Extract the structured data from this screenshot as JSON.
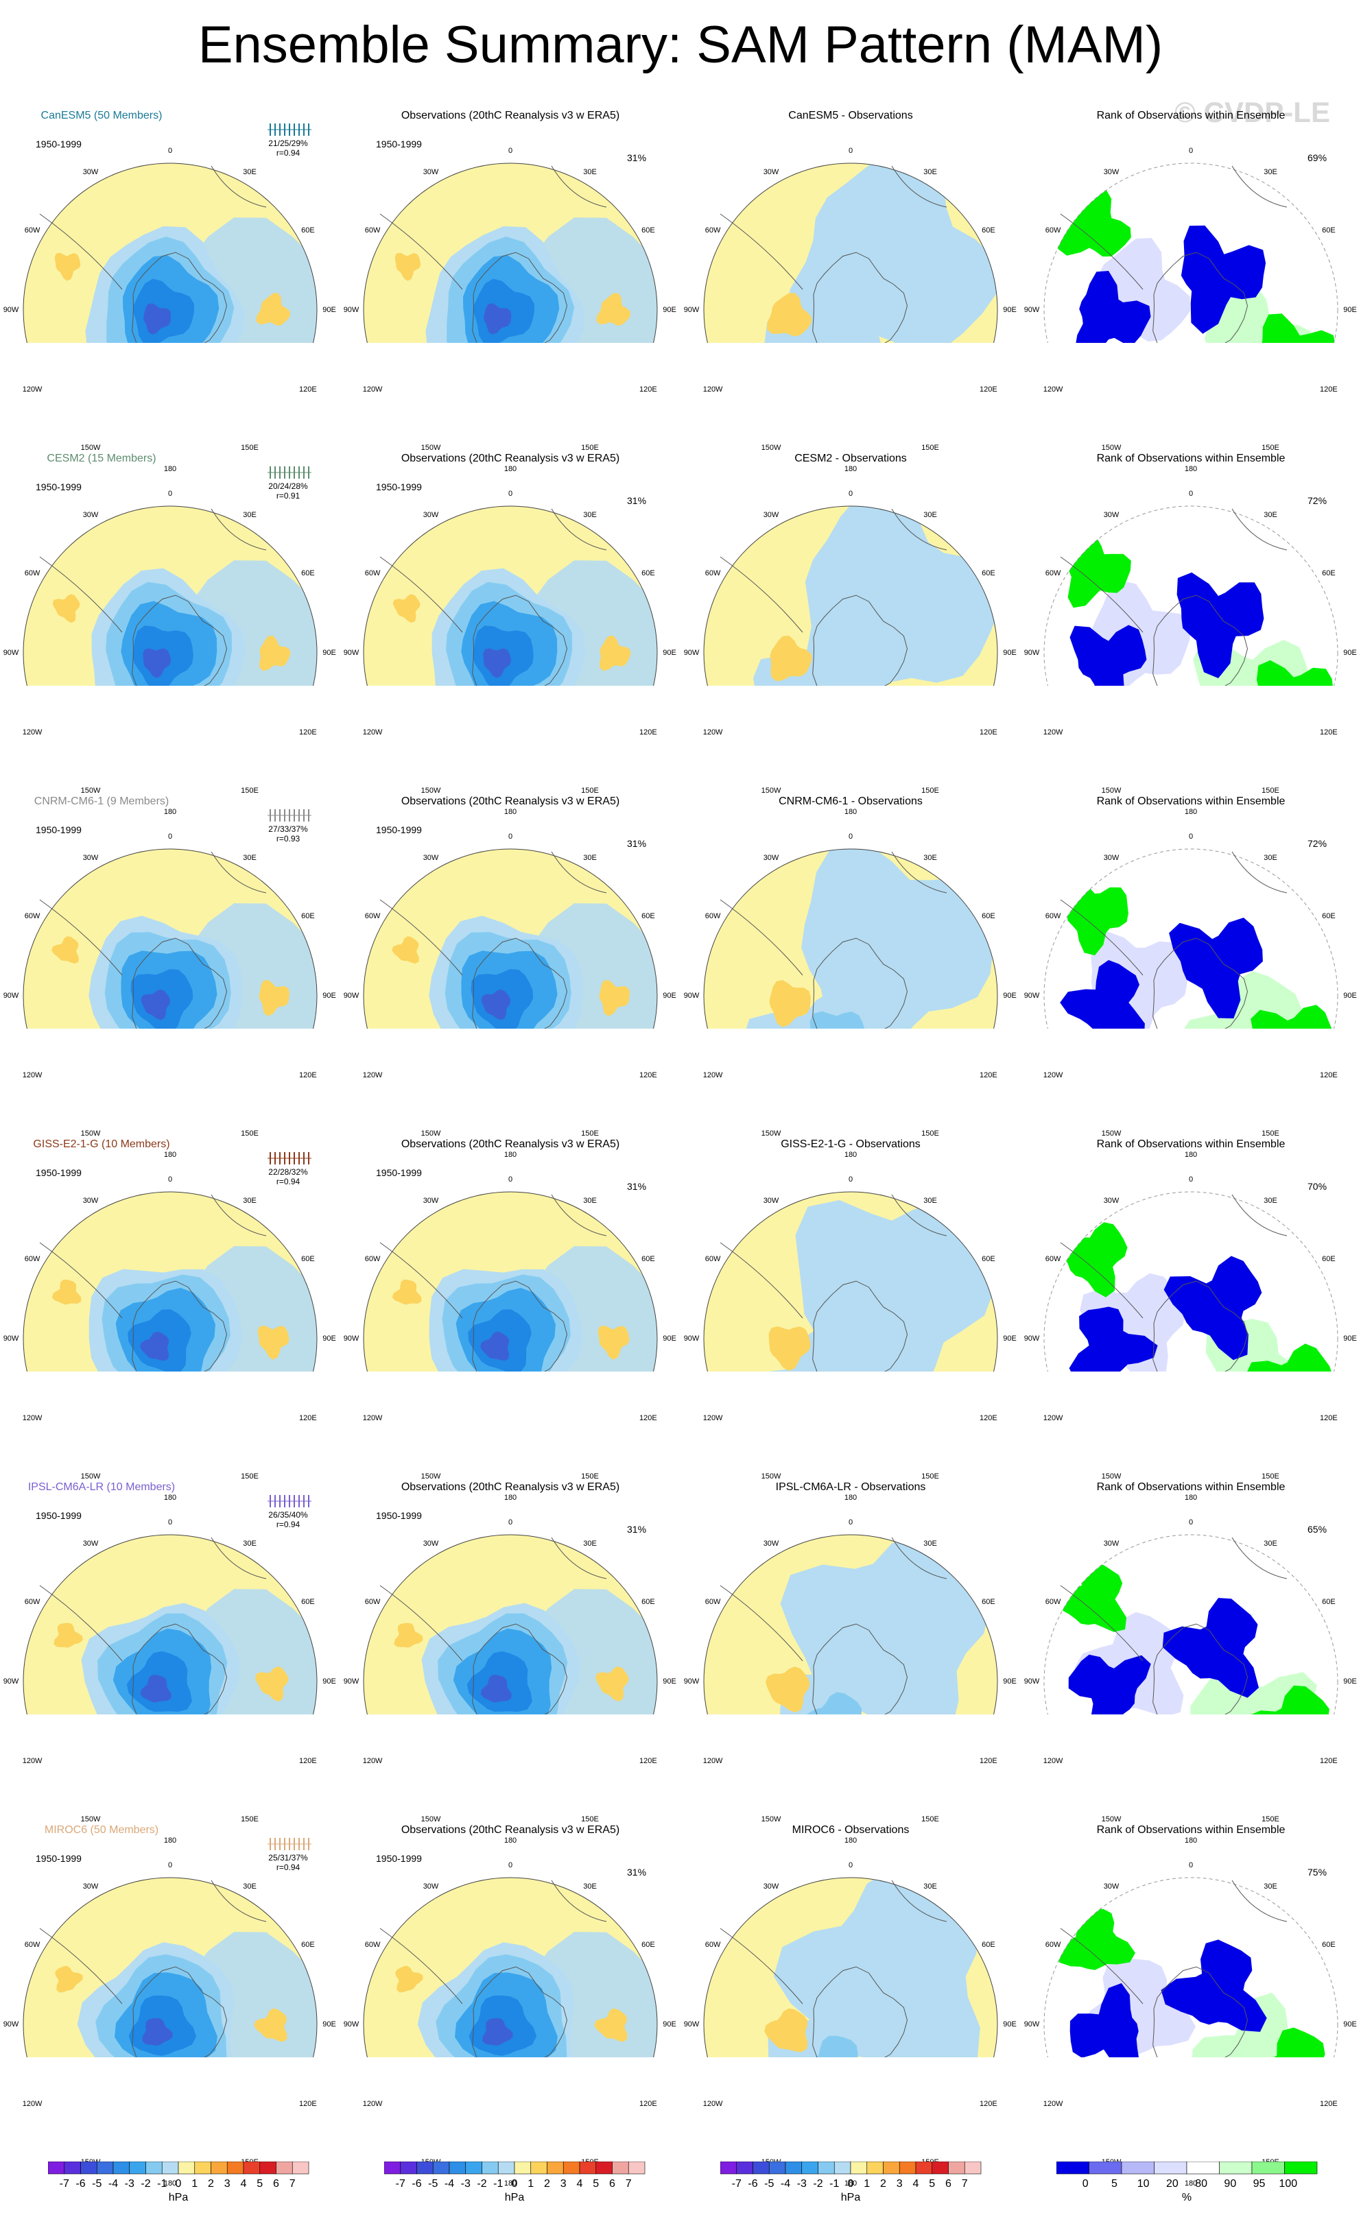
{
  "title": "Ensemble Summary: SAM Pattern (MAM)",
  "watermark": "© CVDP-LE",
  "period": "1950-1999",
  "obs_title": "Observations (20thC Reanalysis v3 w ERA5)",
  "rank_title": "Rank of Observations within Ensemble",
  "longitude_labels": [
    "0",
    "30E",
    "60E",
    "90E",
    "120E",
    "150E",
    "180",
    "150W",
    "120W",
    "90W",
    "60W",
    "30W"
  ],
  "colors": {
    "pos_weak": "#fbf4a5",
    "neg_weak": "#b5dcf2",
    "pos1": "#fbd35d",
    "pos2": "#f9a73c",
    "neg1": "#85cbf1",
    "neg2": "#3aa5ec",
    "neg3": "#1f87e4",
    "neg4": "#3c61d6",
    "rank_dark_blue": "#0000e6",
    "rank_light_blue": "#dddfff",
    "rank_green": "#00f000",
    "rank_light_green": "#ccffcc"
  },
  "rows": [
    {
      "model": "CanESM5 (50 Members)",
      "model_short": "CanESM5",
      "color": "#1a7a96",
      "stats": "21/25/29%",
      "r": "r=0.94",
      "obs_pct": "31%",
      "rank_pct": "69%",
      "diff_title": "CanESM5 - Observations"
    },
    {
      "model": "CESM2 (15 Members)",
      "model_short": "CESM2",
      "color": "#5e8c6e",
      "stats": "20/24/28%",
      "r": "r=0.91",
      "obs_pct": "31%",
      "rank_pct": "72%",
      "diff_title": "CESM2 - Observations"
    },
    {
      "model": "CNRM-CM6-1 (9 Members)",
      "model_short": "CNRM-CM6-1",
      "color": "#8a8a8a",
      "stats": "27/33/37%",
      "r": "r=0.93",
      "obs_pct": "31%",
      "rank_pct": "72%",
      "diff_title": "CNRM-CM6-1 - Observations"
    },
    {
      "model": "GISS-E2-1-G (10 Members)",
      "model_short": "GISS-E2-1-G",
      "color": "#8b3a1a",
      "stats": "22/28/32%",
      "r": "r=0.94",
      "obs_pct": "31%",
      "rank_pct": "70%",
      "diff_title": "GISS-E2-1-G - Observations"
    },
    {
      "model": "IPSL-CM6A-LR (10 Members)",
      "model_short": "IPSL-CM6A-LR",
      "color": "#7a5fcf",
      "stats": "26/35/40%",
      "r": "r=0.94",
      "obs_pct": "31%",
      "rank_pct": "65%",
      "diff_title": "IPSL-CM6A-LR - Observations"
    },
    {
      "model": "MIROC6 (50 Members)",
      "model_short": "MIROC6",
      "color": "#d9a878",
      "stats": "25/31/37%",
      "r": "r=0.94",
      "obs_pct": "31%",
      "rank_pct": "75%",
      "diff_title": "MIROC6 - Observations"
    }
  ],
  "colorbar_hpa": {
    "unit": "hPa",
    "tick_labels": [
      "-7",
      "-6",
      "-5",
      "-4",
      "-3",
      "-2",
      "-1",
      "0",
      "1",
      "2",
      "3",
      "4",
      "5",
      "6",
      "7"
    ],
    "colors": [
      "#7f1ee0",
      "#5a2fdc",
      "#3c4ed9",
      "#3a6fdf",
      "#2f8fe6",
      "#3aa5ec",
      "#85cbf1",
      "#b5dcf2",
      "#fbf4a5",
      "#fbd35d",
      "#f9a73c",
      "#f47a23",
      "#e9402b",
      "#d81e24",
      "#f0a6a0",
      "#f9c6c6"
    ]
  },
  "colorbar_rank": {
    "unit": "%",
    "tick_labels": [
      "0",
      "5",
      "10",
      "20",
      "80",
      "90",
      "95",
      "100"
    ],
    "colors": [
      "#0000e6",
      "#6b6bf0",
      "#b6b8f8",
      "#dddfff",
      "#ffffff",
      "#ccffcc",
      "#8cf78c",
      "#00f000"
    ]
  }
}
